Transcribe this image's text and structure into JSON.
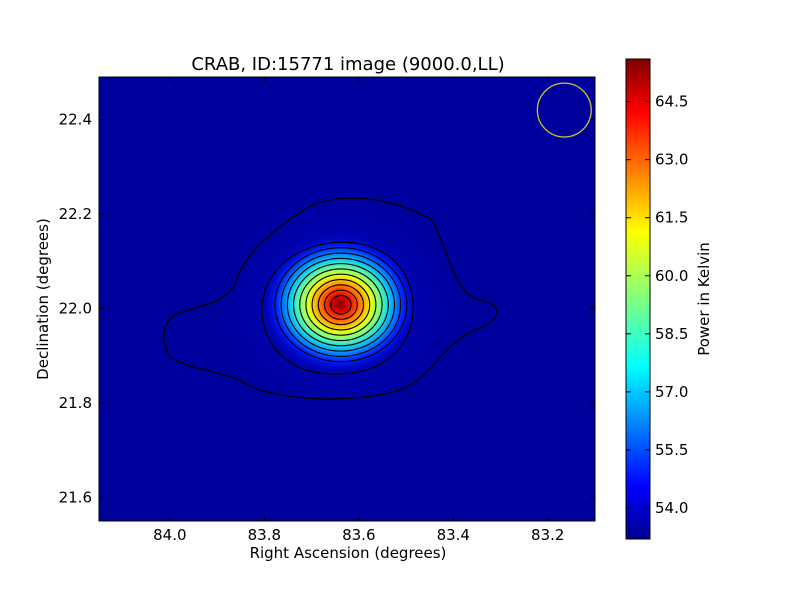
{
  "chart_data": {
    "type": "heatmap",
    "title": "CRAB, ID:15771 image (9000.0,LL)",
    "xlabel": "Right Ascension (degrees)",
    "ylabel": "Declination (degrees)",
    "xlim": [
      84.15,
      83.1
    ],
    "ylim": [
      21.55,
      22.49
    ],
    "xticks": [
      84.0,
      83.8,
      83.6,
      83.4,
      83.2
    ],
    "xtick_labels": [
      "84.0",
      "83.8",
      "83.6",
      "83.4",
      "83.2"
    ],
    "yticks": [
      21.6,
      21.8,
      22.0,
      22.2,
      22.4
    ],
    "ytick_labels": [
      "21.6",
      "21.8",
      "22.0",
      "22.2",
      "22.4"
    ],
    "colorbar": {
      "label": "Power in Kelvin",
      "range": [
        53.2,
        65.6
      ],
      "ticks": [
        54.0,
        55.5,
        57.0,
        58.5,
        60.0,
        61.5,
        63.0,
        64.5
      ],
      "tick_labels": [
        "54.0",
        "55.5",
        "57.0",
        "58.5",
        "60.0",
        "61.5",
        "63.0",
        "64.5"
      ],
      "colormap": "jet"
    },
    "source": {
      "ra": 83.64,
      "dec": 22.01,
      "peak": 65.3,
      "background": 53.3
    },
    "contour_count": 12,
    "beam": {
      "ra": 83.165,
      "dec": 22.42,
      "radius_deg": 0.057,
      "color": "#c8c832"
    },
    "colors": {
      "background_field": "#00009c",
      "contour": "#000000"
    }
  }
}
